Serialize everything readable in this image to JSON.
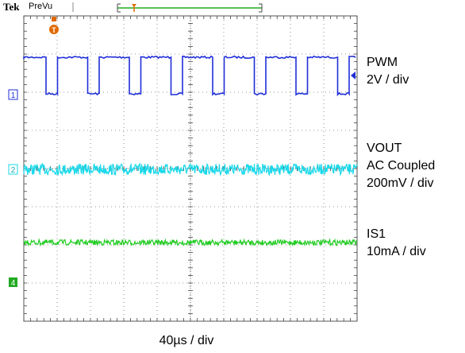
{
  "header": {
    "brand": "Tek",
    "mode": "PreVu",
    "trigger_marker": "T"
  },
  "channels": [
    {
      "marker": "1",
      "name": "PWM",
      "scale": "2V / div",
      "color": "#1f2fd8",
      "type": "square-wave"
    },
    {
      "marker": "2",
      "name": "VOUT",
      "coupling": "AC Coupled",
      "scale": "200mV / div",
      "color": "#19d9ea",
      "type": "noise-band"
    },
    {
      "marker": "4",
      "name": "IS1",
      "scale": "10mA / div",
      "color": "#22cc22",
      "type": "noise-line"
    }
  ],
  "timebase": "40µs / div",
  "colors": {
    "background": "#ffffff",
    "grid": "#555555",
    "trigger": "#e06a00",
    "record_bar": "#22aa22"
  }
}
